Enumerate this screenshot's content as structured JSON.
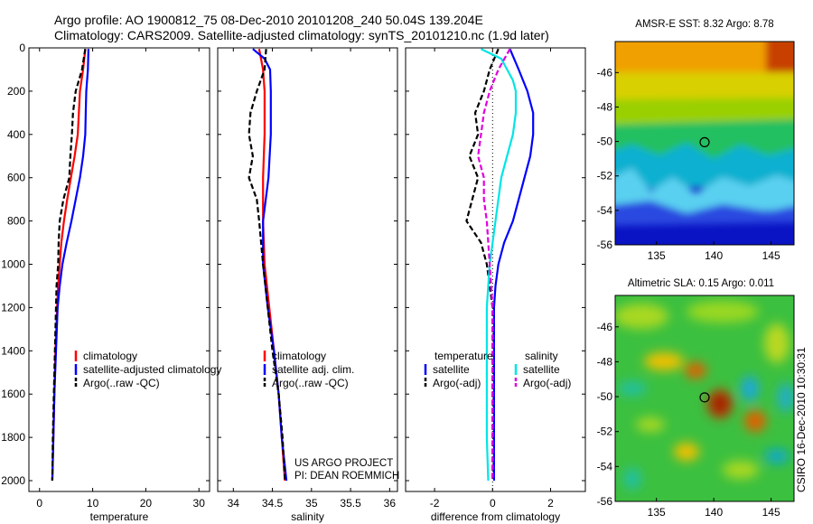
{
  "header": {
    "line1": "Argo profile: AO 1900812_75 08-Dec-2010 20101208_240 50.04S 139.204E",
    "line2": "Climatology: CARS2009. Satellite-adjusted climatology: synTS_20101210.nc (1.9d later)"
  },
  "side_label": "CSIRO 16-Dec-2010 10:30:31",
  "credit": {
    "line1": "US ARGO PROJECT",
    "line2": "PI: DEAN ROEMMICH"
  },
  "colors": {
    "red": "#ff0000",
    "blue": "#0000ff",
    "black": "#000000",
    "cyan": "#00e5e5",
    "magenta": "#e000e0"
  },
  "chart_data": [
    {
      "type": "line",
      "id": "temperature",
      "xlabel": "temperature",
      "xlim": [
        -2,
        32
      ],
      "ylim": [
        2050,
        0
      ],
      "xticks": [
        0,
        10,
        20,
        30
      ],
      "yticks": [
        0,
        200,
        400,
        600,
        800,
        1000,
        1200,
        1400,
        1600,
        1800,
        2000
      ],
      "legend": {
        "position": "lower-right",
        "entries": [
          "climatology",
          "satellite-adjusted climatology",
          "Argo(..raw -QC)"
        ]
      },
      "series": [
        {
          "name": "climatology",
          "color": "#ff0000",
          "points": [
            [
              8.6,
              5
            ],
            [
              8.2,
              100
            ],
            [
              7.6,
              200
            ],
            [
              7.4,
              300
            ],
            [
              7.2,
              400
            ],
            [
              6.6,
              500
            ],
            [
              5.9,
              600
            ],
            [
              5.2,
              700
            ],
            [
              4.6,
              800
            ],
            [
              4.1,
              900
            ],
            [
              3.8,
              1000
            ],
            [
              3.5,
              1100
            ],
            [
              3.3,
              1200
            ],
            [
              3.0,
              1400
            ],
            [
              2.8,
              1600
            ],
            [
              2.6,
              1800
            ],
            [
              2.4,
              2000
            ]
          ]
        },
        {
          "name": "satellite-adjusted climatology",
          "color": "#0000ff",
          "points": [
            [
              9.2,
              5
            ],
            [
              9.1,
              100
            ],
            [
              8.8,
              200
            ],
            [
              8.7,
              300
            ],
            [
              8.6,
              400
            ],
            [
              8.2,
              500
            ],
            [
              7.6,
              600
            ],
            [
              6.8,
              700
            ],
            [
              6.0,
              800
            ],
            [
              5.1,
              900
            ],
            [
              4.3,
              1000
            ],
            [
              3.8,
              1100
            ],
            [
              3.4,
              1200
            ],
            [
              3.1,
              1400
            ],
            [
              2.8,
              1600
            ],
            [
              2.6,
              1800
            ],
            [
              2.4,
              2000
            ]
          ]
        },
        {
          "name": "Argo(..raw -QC)",
          "color": "#000000",
          "dashed": true,
          "points": [
            [
              8.6,
              5
            ],
            [
              8.0,
              100
            ],
            [
              7.4,
              150
            ],
            [
              6.8,
              200
            ],
            [
              6.3,
              300
            ],
            [
              6.1,
              400
            ],
            [
              5.8,
              500
            ],
            [
              5.6,
              600
            ],
            [
              4.5,
              700
            ],
            [
              3.8,
              800
            ],
            [
              3.6,
              900
            ],
            [
              3.5,
              1000
            ],
            [
              3.2,
              1100
            ],
            [
              3.1,
              1200
            ],
            [
              2.9,
              1400
            ],
            [
              2.7,
              1600
            ],
            [
              2.5,
              1800
            ],
            [
              2.4,
              2000
            ]
          ]
        }
      ]
    },
    {
      "type": "line",
      "id": "salinity",
      "xlabel": "salinity",
      "xlim": [
        33.8,
        36.1
      ],
      "ylim": [
        2050,
        0
      ],
      "xticks": [
        34,
        34.5,
        35,
        35.5,
        36
      ],
      "yticks": [
        0,
        200,
        400,
        600,
        800,
        1000,
        1200,
        1400,
        1600,
        1800,
        2000
      ],
      "legend": {
        "position": "lower-right",
        "entries": [
          "climatology",
          "satellite adj. clim.",
          "Argo(..raw -QC)"
        ]
      },
      "series": [
        {
          "name": "climatology",
          "color": "#ff0000",
          "points": [
            [
              34.33,
              5
            ],
            [
              34.38,
              100
            ],
            [
              34.4,
              200
            ],
            [
              34.4,
              300
            ],
            [
              34.4,
              400
            ],
            [
              34.38,
              600
            ],
            [
              34.38,
              800
            ],
            [
              34.4,
              1000
            ],
            [
              34.46,
              1200
            ],
            [
              34.52,
              1400
            ],
            [
              34.58,
              1600
            ],
            [
              34.62,
              1800
            ],
            [
              34.66,
              2000
            ]
          ]
        },
        {
          "name": "satellite adj. clim.",
          "color": "#0000ff",
          "points": [
            [
              34.25,
              5
            ],
            [
              34.4,
              50
            ],
            [
              34.47,
              100
            ],
            [
              34.48,
              200
            ],
            [
              34.48,
              400
            ],
            [
              34.45,
              600
            ],
            [
              34.38,
              800
            ],
            [
              34.38,
              1000
            ],
            [
              34.44,
              1200
            ],
            [
              34.52,
              1400
            ],
            [
              34.58,
              1600
            ],
            [
              34.62,
              1800
            ],
            [
              34.68,
              2000
            ]
          ]
        },
        {
          "name": "Argo(..raw -QC)",
          "color": "#000000",
          "dashed": true,
          "points": [
            [
              34.42,
              5
            ],
            [
              34.4,
              100
            ],
            [
              34.3,
              200
            ],
            [
              34.22,
              300
            ],
            [
              34.2,
              400
            ],
            [
              34.25,
              500
            ],
            [
              34.2,
              600
            ],
            [
              34.3,
              700
            ],
            [
              34.33,
              800
            ],
            [
              34.38,
              1000
            ],
            [
              34.44,
              1200
            ],
            [
              34.5,
              1400
            ],
            [
              34.58,
              1600
            ],
            [
              34.63,
              1800
            ],
            [
              34.66,
              2000
            ]
          ]
        }
      ]
    },
    {
      "type": "line",
      "id": "difference",
      "xlabel": "difference from climatology",
      "xlim": [
        -3,
        3.2
      ],
      "ylim": [
        2050,
        0
      ],
      "xticks": [
        -2,
        0,
        2
      ],
      "yticks": [
        0,
        200,
        400,
        600,
        800,
        1000,
        1200,
        1400,
        1600,
        1800,
        2000
      ],
      "legend": {
        "position": "lower-right",
        "columns": [
          {
            "header": "temperature",
            "entries": [
              "satellite",
              "Argo(-adj)"
            ]
          },
          {
            "header": "salinity",
            "entries": [
              "satellite",
              "Argo(-adj)"
            ]
          }
        ]
      },
      "series": [
        {
          "name": "temperature satellite",
          "color": "#0000ff",
          "points": [
            [
              0.6,
              5
            ],
            [
              0.9,
              100
            ],
            [
              1.2,
              200
            ],
            [
              1.4,
              300
            ],
            [
              1.4,
              400
            ],
            [
              1.3,
              500
            ],
            [
              1.1,
              600
            ],
            [
              0.9,
              700
            ],
            [
              0.7,
              800
            ],
            [
              0.4,
              900
            ],
            [
              0.2,
              1000
            ],
            [
              0.1,
              1100
            ],
            [
              0.05,
              1200
            ],
            [
              0.05,
              1400
            ],
            [
              0.05,
              1600
            ],
            [
              0.05,
              1800
            ],
            [
              0.05,
              2000
            ]
          ]
        },
        {
          "name": "temperature Argo(-adj)",
          "color": "#000000",
          "dashed": true,
          "points": [
            [
              0.2,
              5
            ],
            [
              -0.1,
              100
            ],
            [
              -0.3,
              200
            ],
            [
              -0.6,
              300
            ],
            [
              -0.5,
              400
            ],
            [
              -0.8,
              500
            ],
            [
              -0.5,
              600
            ],
            [
              -0.7,
              700
            ],
            [
              -0.9,
              800
            ],
            [
              -0.4,
              900
            ],
            [
              -0.2,
              1000
            ],
            [
              -0.1,
              1100
            ],
            [
              0.0,
              1200
            ],
            [
              0.0,
              1400
            ],
            [
              0.0,
              1600
            ],
            [
              0.0,
              1800
            ],
            [
              0.0,
              2000
            ]
          ]
        },
        {
          "name": "salinity satellite",
          "color": "#00e5e5",
          "points": [
            [
              -0.4,
              5
            ],
            [
              0.3,
              50
            ],
            [
              0.7,
              150
            ],
            [
              0.8,
              200
            ],
            [
              0.8,
              300
            ],
            [
              0.7,
              400
            ],
            [
              0.5,
              500
            ],
            [
              0.3,
              600
            ],
            [
              0.2,
              700
            ],
            [
              0.1,
              800
            ],
            [
              0.0,
              900
            ],
            [
              -0.1,
              1000
            ],
            [
              -0.15,
              1100
            ],
            [
              -0.2,
              1200
            ],
            [
              -0.2,
              1400
            ],
            [
              -0.2,
              1600
            ],
            [
              -0.2,
              1800
            ],
            [
              -0.15,
              2000
            ]
          ]
        },
        {
          "name": "salinity Argo(-adj)",
          "color": "#e000e0",
          "dashed": true,
          "points": [
            [
              0.6,
              5
            ],
            [
              0.2,
              100
            ],
            [
              -0.1,
              200
            ],
            [
              -0.3,
              300
            ],
            [
              -0.4,
              400
            ],
            [
              -0.5,
              500
            ],
            [
              -0.3,
              600
            ],
            [
              -0.3,
              700
            ],
            [
              -0.2,
              800
            ],
            [
              -0.15,
              900
            ],
            [
              -0.1,
              1000
            ],
            [
              -0.05,
              1100
            ],
            [
              0.0,
              1200
            ],
            [
              0.0,
              1400
            ],
            [
              0.0,
              1600
            ],
            [
              0.0,
              1800
            ],
            [
              0.0,
              2000
            ]
          ]
        }
      ]
    },
    {
      "type": "heatmap",
      "id": "sst-map",
      "title": "AMSR-E SST: 8.32 Argo: 8.78",
      "xlim": [
        131.4,
        147
      ],
      "ylim": [
        -56,
        -44.2
      ],
      "xticks": [
        135,
        140,
        145
      ],
      "yticks": [
        -46,
        -48,
        -50,
        -52,
        -54,
        -56
      ],
      "marker": {
        "lon": 139.2,
        "lat": -50.04
      }
    },
    {
      "type": "heatmap",
      "id": "sla-map",
      "title": "Altimetric SLA: 0.15 Argo: 0.011",
      "xlim": [
        131.4,
        147
      ],
      "ylim": [
        -56,
        -44.2
      ],
      "xticks": [
        135,
        140,
        145
      ],
      "yticks": [
        -46,
        -48,
        -50,
        -52,
        -54,
        -56
      ],
      "marker": {
        "lon": 139.2,
        "lat": -50.04
      }
    }
  ]
}
